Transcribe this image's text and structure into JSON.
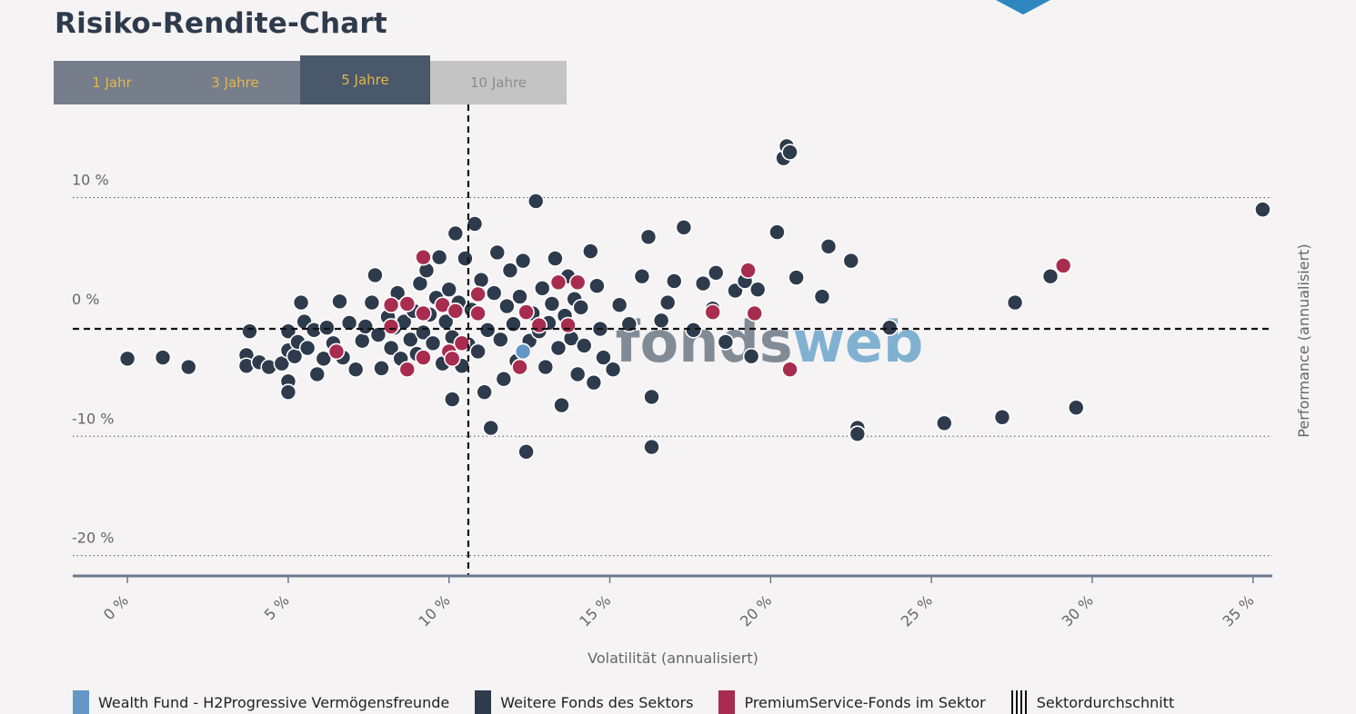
{
  "page": {
    "title": "Risiko-Rendite-Chart",
    "marker_color": "#2e86c1"
  },
  "tabs": [
    {
      "label": "1 Jahr",
      "state": "normal"
    },
    {
      "label": "3 Jahre",
      "state": "normal"
    },
    {
      "label": "5 Jahre",
      "state": "active"
    },
    {
      "label": "10 Jahre",
      "state": "disabled"
    }
  ],
  "watermark": {
    "part1": "fonds",
    "part2": "web",
    "color1": "#6d7985",
    "color2": "#6da6cc"
  },
  "colors": {
    "highlight": "#6496c8",
    "other": "#2e3b4c",
    "premium": "#a82c4f",
    "axis": "#6b7a90"
  },
  "chart_data": {
    "type": "scatter",
    "title": "Risiko-Rendite-Chart",
    "xlabel": "Volatilität (annualisiert)",
    "ylabel": "Performance (annualisiert)",
    "xlim": [
      -1.7,
      35.6
    ],
    "ylim": [
      -21.7,
      17.8
    ],
    "x_ticks": [
      0,
      5,
      10,
      15,
      20,
      25,
      30,
      35
    ],
    "x_tick_labels": [
      "0 %",
      "5 %",
      "10 %",
      "15 %",
      "20 %",
      "25 %",
      "30 %",
      "35 %"
    ],
    "y_ticks": [
      10,
      0,
      -10,
      -20
    ],
    "y_tick_labels": [
      "10 %",
      "0 %",
      "-10 %",
      "-20 %"
    ],
    "sector_average": {
      "x": 10.6,
      "y": -1.0
    },
    "series": [
      {
        "name": "Wealth Fund - H2Progressive Vermögensfreunde",
        "color": "#6496c8",
        "points": [
          [
            12.3,
            -2.9
          ]
        ]
      },
      {
        "name": "Weitere Fonds des Sektors",
        "color": "#2e3b4c",
        "points": [
          [
            0.0,
            -3.5
          ],
          [
            1.1,
            -3.4
          ],
          [
            1.9,
            -4.2
          ],
          [
            3.8,
            -1.2
          ],
          [
            3.7,
            -3.2
          ],
          [
            3.7,
            -4.1
          ],
          [
            4.1,
            -3.8
          ],
          [
            4.4,
            -4.2
          ],
          [
            4.8,
            -3.9
          ],
          [
            5.0,
            -1.2
          ],
          [
            5.0,
            -2.8
          ],
          [
            5.0,
            -5.4
          ],
          [
            5.0,
            -6.3
          ],
          [
            5.2,
            -3.3
          ],
          [
            5.3,
            -2.1
          ],
          [
            5.4,
            1.2
          ],
          [
            5.5,
            -0.4
          ],
          [
            5.6,
            -2.6
          ],
          [
            5.8,
            -1.1
          ],
          [
            5.9,
            -4.8
          ],
          [
            6.1,
            -3.5
          ],
          [
            6.2,
            -0.9
          ],
          [
            6.4,
            -2.2
          ],
          [
            6.6,
            1.3
          ],
          [
            6.7,
            -3.4
          ],
          [
            6.9,
            -0.5
          ],
          [
            7.1,
            -4.4
          ],
          [
            7.3,
            -2.0
          ],
          [
            7.4,
            -0.8
          ],
          [
            7.6,
            1.2
          ],
          [
            7.7,
            3.5
          ],
          [
            7.8,
            -1.5
          ],
          [
            7.9,
            -4.3
          ],
          [
            8.1,
            0.0
          ],
          [
            8.2,
            -2.6
          ],
          [
            8.3,
            -0.9
          ],
          [
            8.4,
            2.0
          ],
          [
            8.5,
            -3.5
          ],
          [
            8.6,
            -0.4
          ],
          [
            8.7,
            1.0
          ],
          [
            8.8,
            -1.9
          ],
          [
            8.9,
            0.5
          ],
          [
            9.0,
            -3.1
          ],
          [
            9.1,
            2.8
          ],
          [
            9.2,
            -1.3
          ],
          [
            9.3,
            3.9
          ],
          [
            9.4,
            0.2
          ],
          [
            9.5,
            -2.2
          ],
          [
            9.6,
            1.6
          ],
          [
            9.7,
            5.0
          ],
          [
            9.8,
            -3.9
          ],
          [
            9.9,
            -0.4
          ],
          [
            10.0,
            2.3
          ],
          [
            10.1,
            -6.9
          ],
          [
            10.1,
            -1.7
          ],
          [
            10.2,
            7.0
          ],
          [
            10.3,
            1.2
          ],
          [
            10.4,
            -4.1
          ],
          [
            10.5,
            4.9
          ],
          [
            10.6,
            -2.3
          ],
          [
            10.7,
            0.6
          ],
          [
            10.8,
            7.8
          ],
          [
            10.9,
            -2.9
          ],
          [
            11.0,
            3.1
          ],
          [
            11.1,
            -6.3
          ],
          [
            11.2,
            -1.1
          ],
          [
            11.3,
            -9.3
          ],
          [
            11.4,
            2.0
          ],
          [
            11.5,
            5.4
          ],
          [
            11.6,
            -1.9
          ],
          [
            11.7,
            -5.2
          ],
          [
            11.8,
            0.9
          ],
          [
            11.9,
            3.9
          ],
          [
            12.0,
            -0.6
          ],
          [
            12.1,
            -3.7
          ],
          [
            12.2,
            1.7
          ],
          [
            12.3,
            4.7
          ],
          [
            12.4,
            -11.3
          ],
          [
            12.5,
            -2.0
          ],
          [
            12.6,
            0.3
          ],
          [
            12.7,
            9.7
          ],
          [
            12.8,
            -1.2
          ],
          [
            12.9,
            2.4
          ],
          [
            13.0,
            -4.2
          ],
          [
            13.1,
            -0.5
          ],
          [
            13.2,
            1.1
          ],
          [
            13.3,
            4.9
          ],
          [
            13.4,
            -2.6
          ],
          [
            13.5,
            -7.4
          ],
          [
            13.6,
            0.1
          ],
          [
            13.7,
            3.4
          ],
          [
            13.8,
            -1.8
          ],
          [
            13.9,
            1.5
          ],
          [
            14.0,
            -4.8
          ],
          [
            14.1,
            0.8
          ],
          [
            14.2,
            -2.4
          ],
          [
            14.4,
            5.5
          ],
          [
            14.5,
            -5.5
          ],
          [
            14.6,
            2.6
          ],
          [
            14.7,
            -1.0
          ],
          [
            14.8,
            -3.4
          ],
          [
            15.1,
            -4.4
          ],
          [
            15.3,
            1.0
          ],
          [
            15.6,
            -0.6
          ],
          [
            16.0,
            3.4
          ],
          [
            16.2,
            6.7
          ],
          [
            16.3,
            -6.7
          ],
          [
            16.3,
            -10.9
          ],
          [
            16.6,
            -0.3
          ],
          [
            16.8,
            1.2
          ],
          [
            17.0,
            3.0
          ],
          [
            17.3,
            7.5
          ],
          [
            17.6,
            -1.1
          ],
          [
            17.9,
            2.8
          ],
          [
            18.2,
            0.7
          ],
          [
            18.3,
            3.7
          ],
          [
            18.6,
            -2.1
          ],
          [
            18.9,
            2.2
          ],
          [
            19.2,
            3.0
          ],
          [
            19.4,
            -3.3
          ],
          [
            19.6,
            2.3
          ],
          [
            20.2,
            7.1
          ],
          [
            20.4,
            13.3
          ],
          [
            20.5,
            14.3
          ],
          [
            20.6,
            13.8
          ],
          [
            20.8,
            3.3
          ],
          [
            21.6,
            1.7
          ],
          [
            21.8,
            5.9
          ],
          [
            22.5,
            4.7
          ],
          [
            22.7,
            -9.3
          ],
          [
            22.7,
            -9.8
          ],
          [
            23.7,
            -0.9
          ],
          [
            25.4,
            -8.9
          ],
          [
            27.2,
            -8.4
          ],
          [
            27.6,
            1.2
          ],
          [
            28.7,
            3.4
          ],
          [
            29.5,
            -7.6
          ],
          [
            35.3,
            9.0
          ]
        ]
      },
      {
        "name": "PremiumService-Fonds im Sektor",
        "color": "#a82c4f",
        "points": [
          [
            6.5,
            -2.9
          ],
          [
            8.2,
            1.0
          ],
          [
            8.2,
            -0.8
          ],
          [
            8.7,
            1.1
          ],
          [
            8.7,
            -4.4
          ],
          [
            9.2,
            -3.4
          ],
          [
            9.2,
            0.3
          ],
          [
            9.2,
            5.0
          ],
          [
            9.8,
            1.0
          ],
          [
            10.0,
            -2.9
          ],
          [
            10.1,
            -3.5
          ],
          [
            10.2,
            0.5
          ],
          [
            10.4,
            -2.2
          ],
          [
            10.9,
            1.9
          ],
          [
            10.9,
            0.3
          ],
          [
            12.2,
            -4.2
          ],
          [
            12.4,
            0.4
          ],
          [
            12.8,
            -0.7
          ],
          [
            13.4,
            2.9
          ],
          [
            13.7,
            -0.7
          ],
          [
            14.0,
            2.9
          ],
          [
            18.2,
            0.4
          ],
          [
            19.3,
            3.9
          ],
          [
            19.5,
            0.3
          ],
          [
            20.6,
            -4.4
          ],
          [
            29.1,
            4.3
          ]
        ]
      }
    ]
  },
  "legend": {
    "items": [
      {
        "label": "Wealth Fund - H2Progressive Vermögensfreunde",
        "color": "#6496c8"
      },
      {
        "label": "Weitere Fonds des Sektors",
        "color": "#2e3b4c"
      },
      {
        "label": "PremiumService-Fonds im Sektor",
        "color": "#a82c4f"
      }
    ],
    "average_label": "Sektordurchschnitt"
  }
}
